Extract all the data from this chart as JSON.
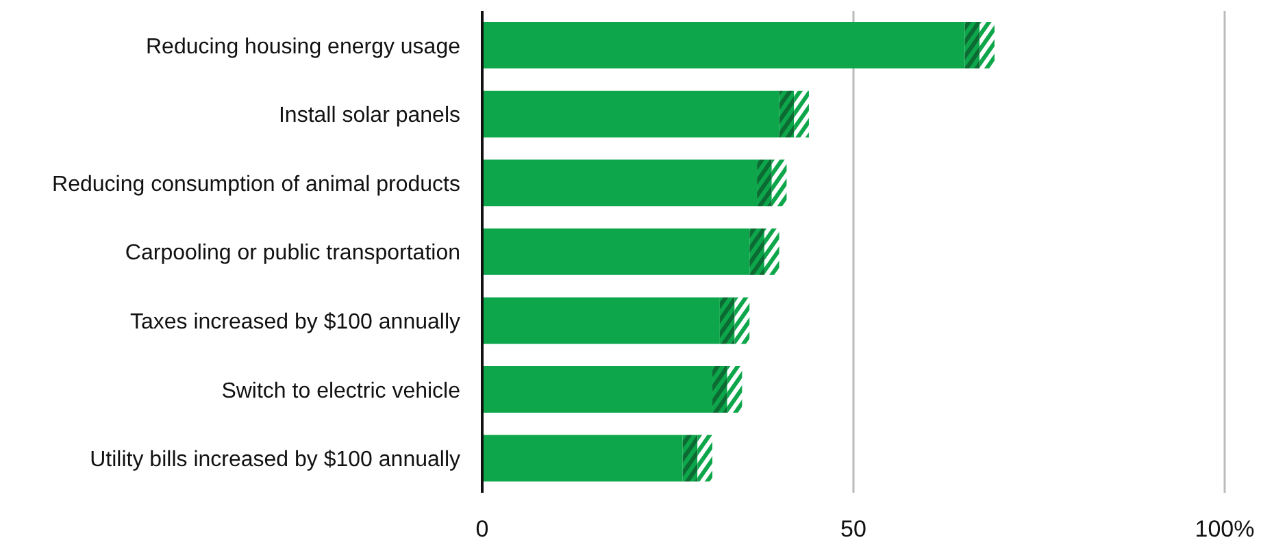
{
  "chart_data": {
    "type": "bar",
    "orientation": "horizontal",
    "stacked": true,
    "categories": [
      "Reducing housing energy usage",
      "Install solar panels",
      "Reducing consumption of animal products",
      "Carpooling or public transportation",
      "Taxes increased by $100 annually",
      "Switch to electric vehicle",
      "Utility bills increased by $100 annually"
    ],
    "series": [
      {
        "color": "#0da64a",
        "values": [
          65,
          40,
          37,
          36,
          32,
          31,
          27
        ]
      },
      {
        "color": "#0b6b33",
        "values": [
          2,
          2,
          2,
          2,
          2,
          2,
          2
        ]
      },
      {
        "color": "#0da64a",
        "values": [
          2,
          2,
          2,
          2,
          2,
          2,
          2
        ]
      }
    ],
    "xlim": [
      0,
      100
    ],
    "xticks": [
      0,
      50,
      {
        "value": 100,
        "label": "100%"
      }
    ],
    "grid": "x",
    "legend": false
  }
}
